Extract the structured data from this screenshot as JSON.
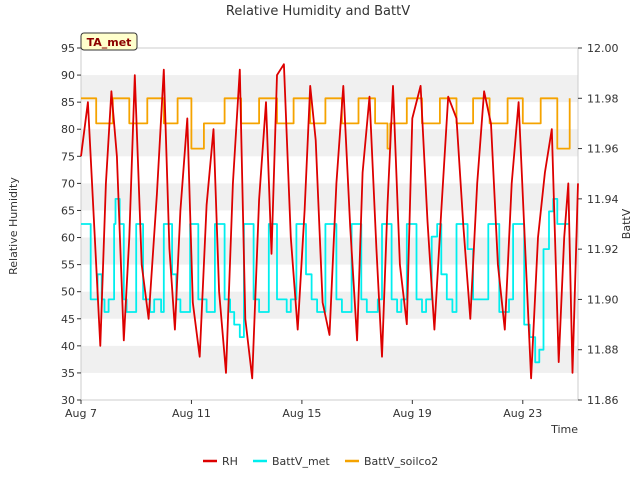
{
  "chart_data": {
    "type": "line",
    "title": "Relative Humidity and BattV",
    "xlabel": "Time",
    "ylabel_left": "Relative Humidity",
    "ylabel_right": "BattV",
    "badge": "TA_met",
    "x_ticks": [
      {
        "label": "Aug 7",
        "day": 7
      },
      {
        "label": "Aug 11",
        "day": 11
      },
      {
        "label": "Aug 15",
        "day": 15
      },
      {
        "label": "Aug 19",
        "day": 19
      },
      {
        "label": "Aug 23",
        "day": 23
      }
    ],
    "xlim": [
      7,
      25
    ],
    "ylim_left": [
      30,
      95
    ],
    "ylim_right": [
      11.86,
      12.0
    ],
    "yticks_left": [
      30,
      35,
      40,
      45,
      50,
      55,
      60,
      65,
      70,
      75,
      80,
      85,
      90,
      95
    ],
    "yticks_right": [
      "11.86",
      "11.88",
      "11.90",
      "11.92",
      "11.94",
      "11.96",
      "11.98",
      "12.00"
    ],
    "legend_position": "bottom-center",
    "grid": "alternating horizontal bands",
    "series": [
      {
        "name": "RH",
        "axis": "left",
        "color": "#dd0000",
        "x": [
          7.0,
          7.25,
          7.5,
          7.7,
          7.9,
          8.1,
          8.3,
          8.55,
          8.75,
          8.95,
          9.2,
          9.45,
          9.75,
          10.0,
          10.2,
          10.4,
          10.6,
          10.85,
          11.05,
          11.3,
          11.55,
          11.8,
          12.0,
          12.25,
          12.5,
          12.75,
          12.95,
          13.2,
          13.45,
          13.7,
          13.9,
          14.1,
          14.35,
          14.6,
          14.85,
          15.1,
          15.3,
          15.5,
          15.75,
          16.0,
          16.25,
          16.5,
          16.75,
          17.0,
          17.2,
          17.45,
          17.7,
          17.9,
          18.1,
          18.3,
          18.55,
          18.8,
          19.0,
          19.3,
          19.55,
          19.8,
          20.05,
          20.3,
          20.6,
          20.85,
          21.1,
          21.35,
          21.6,
          21.85,
          22.1,
          22.35,
          22.6,
          22.85,
          23.05,
          23.3,
          23.55,
          23.8,
          24.05,
          24.3,
          24.5,
          24.65,
          24.8,
          25.0
        ],
        "y": [
          75,
          85,
          60,
          40,
          70,
          87,
          75,
          41,
          60,
          90,
          55,
          45,
          68,
          91,
          58,
          43,
          65,
          82,
          48,
          38,
          66,
          80,
          50,
          35,
          70,
          91,
          45,
          34,
          67,
          85,
          57,
          90,
          92,
          60,
          43,
          65,
          88,
          78,
          48,
          42,
          70,
          88,
          62,
          41,
          72,
          86,
          58,
          38,
          66,
          88,
          55,
          44,
          82,
          88,
          63,
          43,
          65,
          86,
          82,
          62,
          45,
          70,
          87,
          81,
          55,
          43,
          70,
          85,
          62,
          34,
          60,
          72,
          80,
          37,
          60,
          70,
          35,
          70
        ]
      },
      {
        "name": "BattV_met",
        "axis": "right",
        "color": "#00eeee",
        "x": [
          7.0,
          7.3,
          7.35,
          7.6,
          7.75,
          7.85,
          8.0,
          8.2,
          8.25,
          8.4,
          8.55,
          8.65,
          8.85,
          9.0,
          9.1,
          9.25,
          9.5,
          9.65,
          9.9,
          10.0,
          10.1,
          10.3,
          10.45,
          10.6,
          10.75,
          10.95,
          11.1,
          11.25,
          11.4,
          11.55,
          11.7,
          11.85,
          12.05,
          12.2,
          12.4,
          12.55,
          12.75,
          12.9,
          13.05,
          13.25,
          13.45,
          13.6,
          13.8,
          13.95,
          14.1,
          14.3,
          14.45,
          14.6,
          14.8,
          15.0,
          15.15,
          15.35,
          15.55,
          15.7,
          15.85,
          16.05,
          16.25,
          16.45,
          16.6,
          16.8,
          17.0,
          17.15,
          17.35,
          17.55,
          17.75,
          17.9,
          18.05,
          18.25,
          18.45,
          18.6,
          18.8,
          19.0,
          19.15,
          19.35,
          19.5,
          19.7,
          19.9,
          20.05,
          20.25,
          20.45,
          20.6,
          20.8,
          21.0,
          21.2,
          21.4,
          21.55,
          21.75,
          21.95,
          22.15,
          22.35,
          22.5,
          22.65,
          22.85,
          23.05,
          23.25,
          23.45,
          23.6,
          23.75,
          23.95,
          24.1,
          24.25,
          24.4,
          24.55,
          24.7
        ],
        "y": [
          11.93,
          11.93,
          11.9,
          11.91,
          11.9,
          11.895,
          11.9,
          11.93,
          11.94,
          11.93,
          11.9,
          11.895,
          11.895,
          11.93,
          11.93,
          11.9,
          11.895,
          11.9,
          11.895,
          11.93,
          11.93,
          11.91,
          11.9,
          11.895,
          11.895,
          11.93,
          11.93,
          11.9,
          11.9,
          11.895,
          11.895,
          11.93,
          11.93,
          11.9,
          11.895,
          11.89,
          11.885,
          11.93,
          11.93,
          11.9,
          11.895,
          11.895,
          11.93,
          11.93,
          11.9,
          11.9,
          11.895,
          11.9,
          11.93,
          11.93,
          11.91,
          11.9,
          11.895,
          11.895,
          11.93,
          11.93,
          11.9,
          11.895,
          11.895,
          11.93,
          11.93,
          11.9,
          11.895,
          11.895,
          11.9,
          11.93,
          11.93,
          11.9,
          11.895,
          11.9,
          11.93,
          11.93,
          11.9,
          11.895,
          11.9,
          11.925,
          11.93,
          11.91,
          11.9,
          11.895,
          11.93,
          11.93,
          11.92,
          11.9,
          11.9,
          11.9,
          11.93,
          11.93,
          11.895,
          11.895,
          11.9,
          11.93,
          11.93,
          11.89,
          11.885,
          11.875,
          11.88,
          11.92,
          11.935,
          11.94,
          11.93,
          11.93,
          11.93,
          11.93
        ]
      },
      {
        "name": "BattV_soilco2",
        "axis": "right",
        "color": "#f5a300",
        "x": [
          7.0,
          7.5,
          7.55,
          8.05,
          8.15,
          8.6,
          8.75,
          9.25,
          9.4,
          9.9,
          10.0,
          10.4,
          10.5,
          10.9,
          11.0,
          11.45,
          11.55,
          12.1,
          12.2,
          12.7,
          12.8,
          13.3,
          13.45,
          14.0,
          14.1,
          14.55,
          14.7,
          15.2,
          15.3,
          15.75,
          15.85,
          16.35,
          16.45,
          16.95,
          17.05,
          17.55,
          17.65,
          18.1,
          18.2,
          18.65,
          18.8,
          19.25,
          19.35,
          19.85,
          20.0,
          20.5,
          20.6,
          21.1,
          21.2,
          21.7,
          21.8,
          22.3,
          22.45,
          22.9,
          23.0,
          23.5,
          23.65,
          24.15,
          24.25,
          24.7
        ],
        "y": [
          11.98,
          11.98,
          11.97,
          11.97,
          11.98,
          11.98,
          11.97,
          11.97,
          11.98,
          11.98,
          11.97,
          11.97,
          11.98,
          11.98,
          11.96,
          11.97,
          11.97,
          11.97,
          11.98,
          11.98,
          11.97,
          11.97,
          11.98,
          11.98,
          11.97,
          11.97,
          11.98,
          11.98,
          11.97,
          11.97,
          11.98,
          11.98,
          11.97,
          11.97,
          11.98,
          11.98,
          11.97,
          11.96,
          11.97,
          11.97,
          11.98,
          11.98,
          11.97,
          11.97,
          11.98,
          11.98,
          11.97,
          11.97,
          11.98,
          11.98,
          11.97,
          11.97,
          11.98,
          11.98,
          11.97,
          11.97,
          11.98,
          11.98,
          11.96,
          11.98
        ]
      }
    ]
  }
}
